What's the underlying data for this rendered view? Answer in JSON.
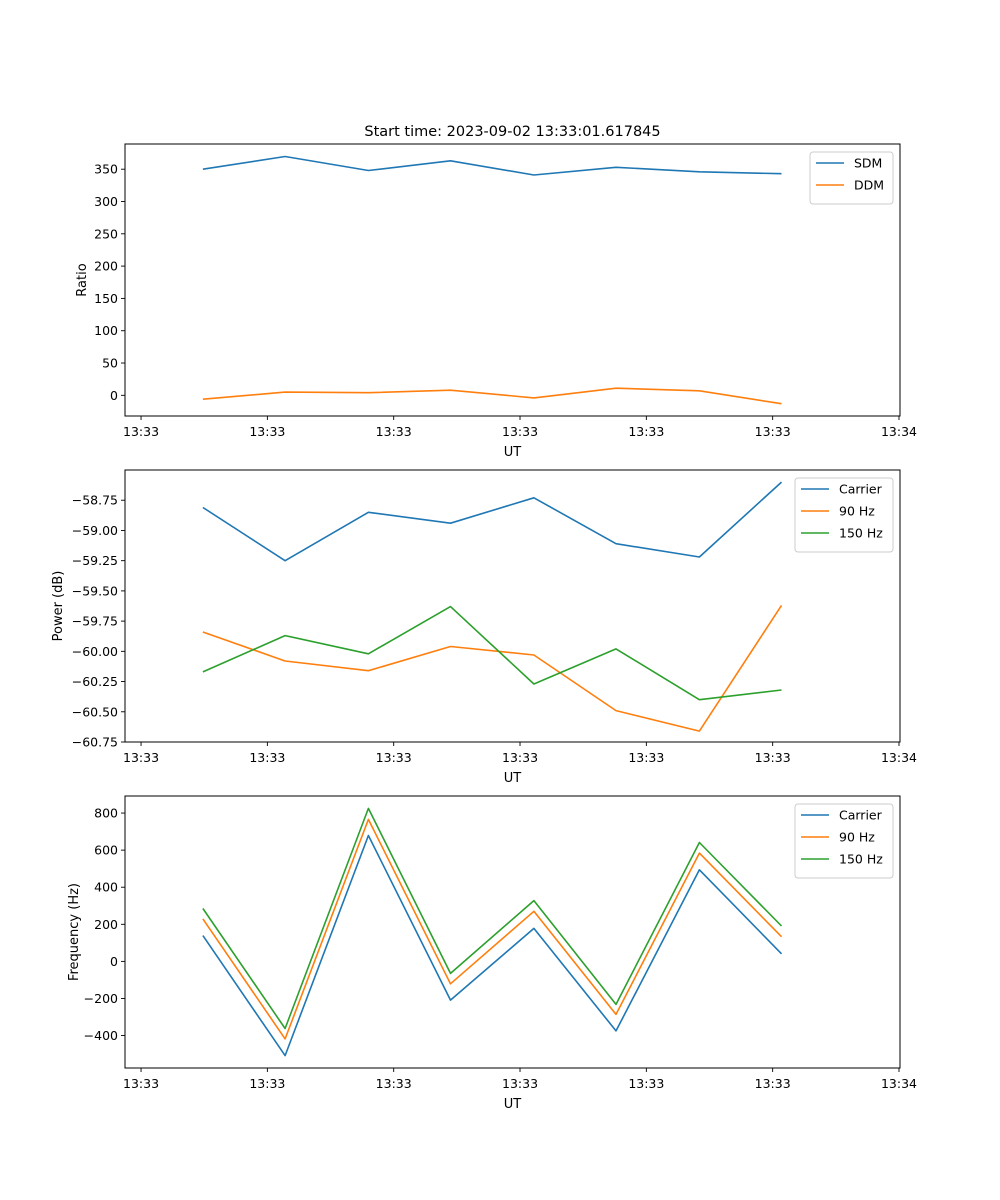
{
  "chart_data": [
    {
      "type": "line",
      "title": "Start time: 2023-09-02 13:33:01.617845",
      "xlabel": "UT",
      "ylabel": "Ratio",
      "x_seconds_after_13_33_00": [
        4.9,
        11.4,
        18.0,
        24.5,
        31.1,
        37.6,
        44.2,
        50.7
      ],
      "xlim": [
        -1.27,
        60.08
      ],
      "xticks": [
        0,
        10,
        20,
        30,
        40,
        50,
        60
      ],
      "xtick_labels": [
        "13:33",
        "13:33",
        "13:33",
        "13:33",
        "13:33",
        "13:33",
        "13:34"
      ],
      "ylim": [
        -32,
        389
      ],
      "yticks": [
        0,
        50,
        100,
        150,
        200,
        250,
        300,
        350
      ],
      "ytick_labels": [
        "0",
        "50",
        "100",
        "150",
        "200",
        "250",
        "300",
        "350"
      ],
      "legend": "top-right",
      "series": [
        {
          "name": "SDM",
          "color": "#1f77b4",
          "values": [
            350,
            369.6,
            348,
            363,
            341,
            353,
            346,
            343
          ]
        },
        {
          "name": "DDM",
          "color": "#ff7f0e",
          "values": [
            -6,
            5,
            4,
            8,
            -4,
            11,
            7,
            -13
          ]
        }
      ]
    },
    {
      "type": "line",
      "title": "",
      "xlabel": "UT",
      "ylabel": "Power (dB)",
      "x_seconds_after_13_33_00": [
        4.9,
        11.4,
        18.0,
        24.5,
        31.1,
        37.6,
        44.2,
        50.7
      ],
      "xlim": [
        -1.27,
        60.08
      ],
      "xticks": [
        0,
        10,
        20,
        30,
        40,
        50,
        60
      ],
      "xtick_labels": [
        "13:33",
        "13:33",
        "13:33",
        "13:33",
        "13:33",
        "13:33",
        "13:34"
      ],
      "ylim": [
        -60.75,
        -58.5
      ],
      "yticks": [
        -58.75,
        -59.0,
        -59.25,
        -59.5,
        -59.75,
        -60.0,
        -60.25,
        -60.5,
        -60.75
      ],
      "ytick_labels": [
        "−58.75",
        "−59.00",
        "−59.25",
        "−59.50",
        "−59.75",
        "−60.00",
        "−60.25",
        "−60.50",
        "−60.75"
      ],
      "legend": "top-right",
      "series": [
        {
          "name": "Carrier",
          "color": "#1f77b4",
          "values": [
            -58.81,
            -59.25,
            -58.85,
            -58.94,
            -58.73,
            -59.11,
            -59.22,
            -58.6
          ]
        },
        {
          "name": "90 Hz",
          "color": "#ff7f0e",
          "values": [
            -59.84,
            -60.08,
            -60.16,
            -59.96,
            -60.03,
            -60.49,
            -60.66,
            -59.62
          ]
        },
        {
          "name": "150 Hz",
          "color": "#2ca02c",
          "values": [
            -60.17,
            -59.87,
            -60.02,
            -59.63,
            -60.27,
            -59.98,
            -60.4,
            -60.32
          ]
        }
      ]
    },
    {
      "type": "line",
      "title": "",
      "xlabel": "UT",
      "ylabel": "Frequency (Hz)",
      "x_seconds_after_13_33_00": [
        4.9,
        11.4,
        18.0,
        24.5,
        31.1,
        37.6,
        44.2,
        50.7
      ],
      "xlim": [
        -1.27,
        60.08
      ],
      "xticks": [
        0,
        10,
        20,
        30,
        40,
        50,
        60
      ],
      "xtick_labels": [
        "13:33",
        "13:33",
        "13:33",
        "13:33",
        "13:33",
        "13:33",
        "13:34"
      ],
      "ylim": [
        -575,
        892
      ],
      "yticks": [
        -400,
        -200,
        0,
        200,
        400,
        600,
        800
      ],
      "ytick_labels": [
        "−400",
        "−200",
        "0",
        "200",
        "400",
        "600",
        "800"
      ],
      "legend": "top-right",
      "series": [
        {
          "name": "Carrier",
          "color": "#1f77b4",
          "values": [
            139,
            -508,
            679,
            -209,
            178,
            -375,
            494,
            41
          ]
        },
        {
          "name": "90 Hz",
          "color": "#ff7f0e",
          "values": [
            229,
            -418,
            766,
            -121,
            270,
            -286,
            584,
            133
          ]
        },
        {
          "name": "150 Hz",
          "color": "#2ca02c",
          "values": [
            285,
            -362,
            825,
            -65,
            328,
            -232,
            641,
            191
          ]
        }
      ]
    }
  ]
}
